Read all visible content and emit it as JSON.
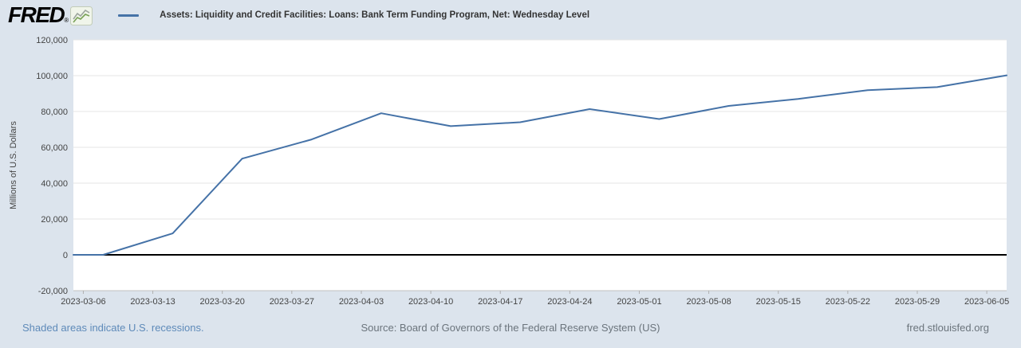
{
  "header": {
    "logo_text": "FRED",
    "logo_registered": "®",
    "series_title": "Assets: Liquidity and Credit Facilities: Loans: Bank Term Funding Program, Net: Wednesday Level"
  },
  "footer": {
    "recessions_note": "Shaded areas indicate U.S. recessions.",
    "source": "Source: Board of Governors of the Federal Reserve System (US)",
    "site": "fred.stlouisfed.org"
  },
  "colors": {
    "background": "#dce4ed",
    "plot_background": "#ffffff",
    "grid_line": "#e5e5e5",
    "zero_line": "#000000",
    "axis_line": "#c0c0c0",
    "tick_mark": "#b0b0b0",
    "axis_text": "#444444",
    "line": "#4572a7",
    "title_text": "#333333",
    "footer_link": "#5e8ab9",
    "footer_text": "#6b747c"
  },
  "chart_data": {
    "type": "line",
    "title": "Assets: Liquidity and Credit Facilities: Loans: Bank Term Funding Program, Net: Wednesday Level",
    "xlabel": "",
    "ylabel": "Millions of U.S. Dollars",
    "units": "Millions of U.S. Dollars",
    "frequency": "weekly, Wednesday level",
    "grid": "horizontal",
    "legend_position": "top-left header",
    "line_color": "#4572a7",
    "ylim": [
      -20000,
      120000
    ],
    "y_tick_interval": 20000,
    "y_ticks": [
      {
        "label": "120,000",
        "value": 120000
      },
      {
        "label": "100,000",
        "value": 100000
      },
      {
        "label": "80,000",
        "value": 80000
      },
      {
        "label": "60,000",
        "value": 60000
      },
      {
        "label": "40,000",
        "value": 40000
      },
      {
        "label": "20,000",
        "value": 20000
      },
      {
        "label": "0",
        "value": 0
      },
      {
        "label": "-20,000",
        "value": -20000
      }
    ],
    "x_range": [
      "2023-03-05",
      "2023-06-07"
    ],
    "x_tick_labels": [
      "2023-03-06",
      "2023-03-13",
      "2023-03-20",
      "2023-03-27",
      "2023-04-03",
      "2023-04-10",
      "2023-04-17",
      "2023-04-24",
      "2023-05-01",
      "2023-05-08",
      "2023-05-15",
      "2023-05-22",
      "2023-05-29",
      "2023-06-05"
    ],
    "observations": [
      {
        "date": "2023-03-01",
        "value": 0
      },
      {
        "date": "2023-03-08",
        "value": 0
      },
      {
        "date": "2023-03-15",
        "value": 11943
      },
      {
        "date": "2023-03-22",
        "value": 53669
      },
      {
        "date": "2023-03-29",
        "value": 64403
      },
      {
        "date": "2023-04-05",
        "value": 79021
      },
      {
        "date": "2023-04-12",
        "value": 71837
      },
      {
        "date": "2023-04-19",
        "value": 73982
      },
      {
        "date": "2023-04-26",
        "value": 81327
      },
      {
        "date": "2023-05-03",
        "value": 75778
      },
      {
        "date": "2023-05-10",
        "value": 83101
      },
      {
        "date": "2023-05-17",
        "value": 87006
      },
      {
        "date": "2023-05-24",
        "value": 91907
      },
      {
        "date": "2023-05-31",
        "value": 93615
      },
      {
        "date": "2023-06-07",
        "value": 100161
      }
    ]
  }
}
